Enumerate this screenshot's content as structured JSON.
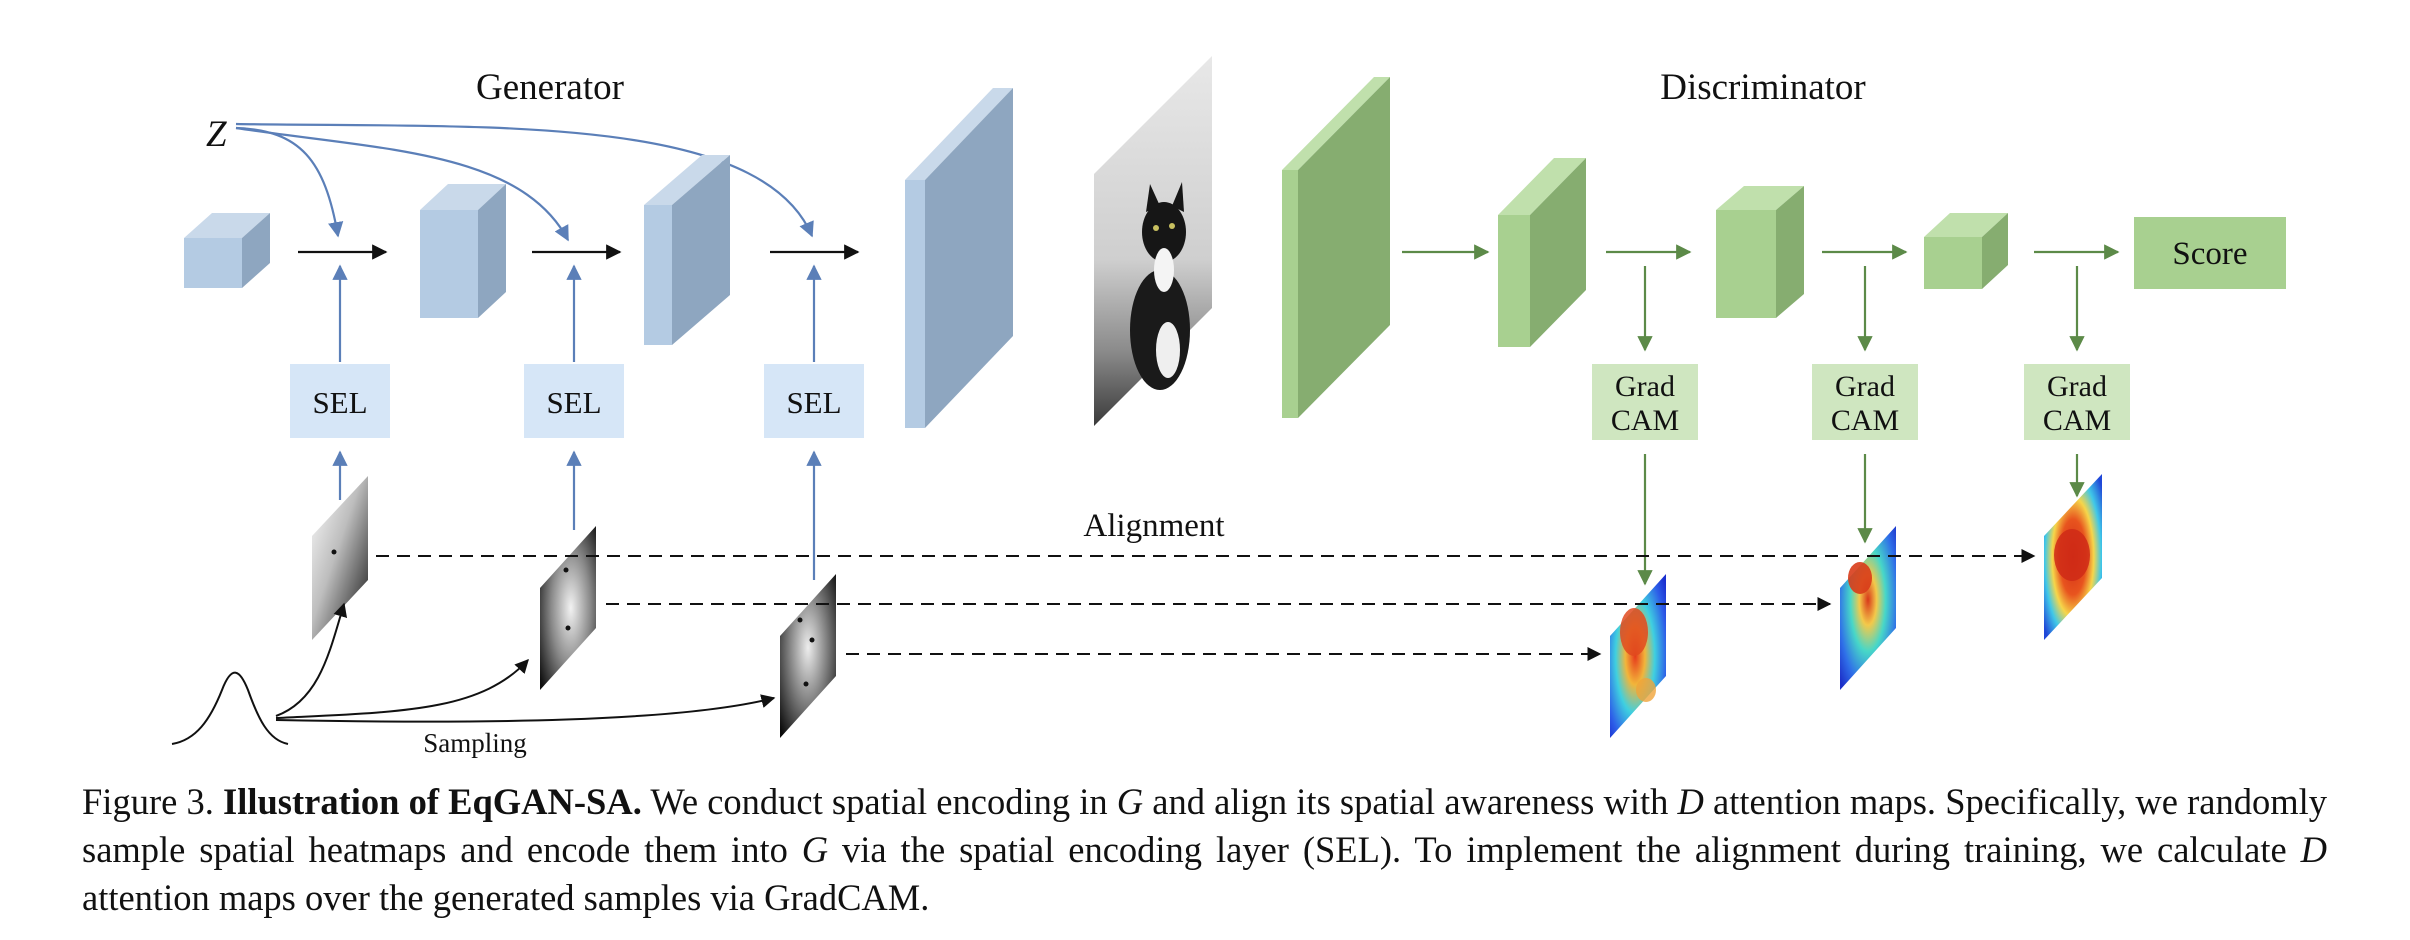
{
  "title_generator": "Generator",
  "title_discriminator": "Discriminator",
  "latent_label": "Z",
  "sel_label": "SEL",
  "gradcam_line1": "Grad",
  "gradcam_line2": "CAM",
  "score_label": "Score",
  "alignment_label": "Alignment",
  "sampling_label": "Sampling",
  "caption": {
    "figure_label": "Figure 3.",
    "title_bold": "Illustration of EqGAN-SA.",
    "t1": " We conduct spatial encoding in ",
    "sym_g": "G",
    "t2": " and align its spatial awareness with ",
    "sym_d": "D",
    "t3": " attention maps. Specifically, we randomly sample spatial heatmaps and encode them into ",
    "t4": " via the spatial encoding layer (SEL). To implement the alignment during training, we calculate ",
    "t5": " attention maps over the generated samples via GradCAM."
  },
  "colors": {
    "generator_blue_front": "#b4cbe3",
    "generator_blue_side": "#8ea6c0",
    "sel_fill": "#d6e6f7",
    "discriminator_green_front": "#a8d090",
    "discriminator_green_side": "#86ad70",
    "gradcam_fill": "#cfe6c0",
    "arrow_blue": "#5b7fb8",
    "arrow_green": "#5c8a48"
  }
}
